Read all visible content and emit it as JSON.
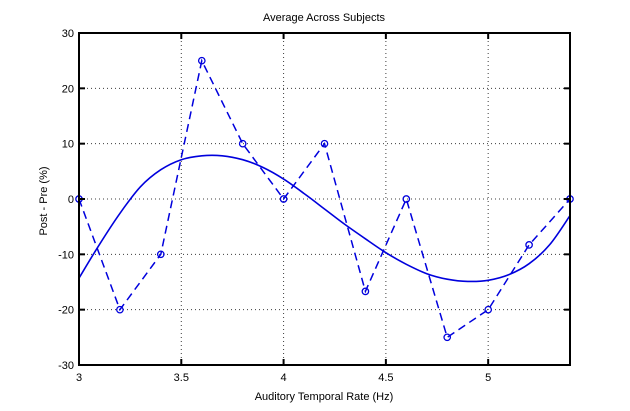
{
  "figure": {
    "colors": {
      "series_blue": "#0000dd",
      "axis": "#000000",
      "grid": "#3c3c3c",
      "background": "#ffffff",
      "text": "#000000"
    }
  },
  "chart_data": {
    "type": "line",
    "title": "Average Across Subjects",
    "xlabel": "Auditory Temporal Rate (Hz)",
    "ylabel": "Post - Pre (%)",
    "xlim": [
      3,
      5.4
    ],
    "ylim": [
      -30,
      30
    ],
    "xticks": [
      3,
      3.5,
      4,
      4.5,
      5
    ],
    "yticks": [
      -30,
      -20,
      -10,
      0,
      10,
      20,
      30
    ],
    "grid": true,
    "legend": "none",
    "series": [
      {
        "name": "subject-average-data",
        "line_style": "dashed",
        "marker": "circle",
        "color": "#0000dd",
        "x": [
          3.0,
          3.2,
          3.4,
          3.6,
          3.8,
          4.0,
          4.2,
          4.4,
          4.6,
          4.8,
          5.0,
          5.2,
          5.4
        ],
        "y": [
          0,
          -20,
          -10,
          25,
          10,
          0,
          10,
          -16.7,
          0,
          -25,
          -20,
          -8.3,
          0
        ]
      },
      {
        "name": "smooth-fit-curve",
        "line_style": "solid",
        "marker": "none",
        "color": "#0000dd",
        "x": [
          3.0,
          3.1,
          3.2,
          3.3,
          3.4,
          3.5,
          3.6,
          3.7,
          3.8,
          3.9,
          4.0,
          4.1,
          4.2,
          4.3,
          4.4,
          4.5,
          4.6,
          4.7,
          4.8,
          4.9,
          5.0,
          5.1,
          5.2,
          5.3,
          5.4
        ],
        "y": [
          -14.3,
          -8.2,
          -2.6,
          2.2,
          5.3,
          7.1,
          7.8,
          7.8,
          7.1,
          5.7,
          3.6,
          1.0,
          -1.8,
          -4.6,
          -7.2,
          -9.7,
          -11.8,
          -13.5,
          -14.5,
          -14.9,
          -14.7,
          -13.7,
          -11.7,
          -8.3,
          -3.0
        ]
      }
    ]
  }
}
